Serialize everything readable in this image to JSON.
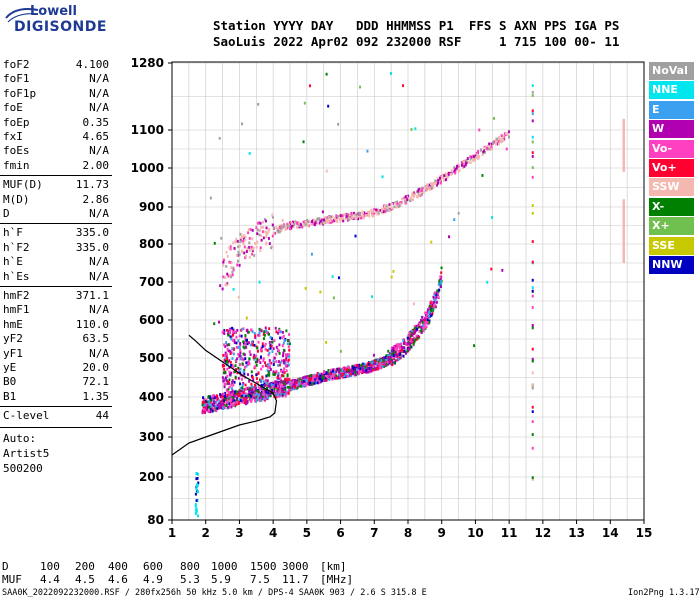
{
  "logo": {
    "top": "Lowell",
    "bottom": "DIGISONDE"
  },
  "header": {
    "row1": "Station YYYY DAY   DDD HHMMSS P1  FFS S AXN PPS IGA PS",
    "row2": "SaoLuis 2022 Apr02 092 232000 RSF     1 715 100 00- 11"
  },
  "params": [
    {
      "name": "foF2",
      "value": "4.100"
    },
    {
      "name": "foF1",
      "value": "N/A"
    },
    {
      "name": "foF1p",
      "value": "N/A"
    },
    {
      "name": "foE",
      "value": "N/A"
    },
    {
      "name": "foEp",
      "value": "0.35"
    },
    {
      "name": "fxI",
      "value": "4.65"
    },
    {
      "name": "foEs",
      "value": "N/A"
    },
    {
      "name": "fmin",
      "value": "2.00"
    },
    {
      "name": "MUF(D)",
      "value": "11.73"
    },
    {
      "name": "M(D)",
      "value": "2.86"
    },
    {
      "name": "D",
      "value": "N/A"
    },
    {
      "name": "h`F",
      "value": "335.0"
    },
    {
      "name": "h`F2",
      "value": "335.0"
    },
    {
      "name": "h`E",
      "value": "N/A"
    },
    {
      "name": "h`Es",
      "value": "N/A"
    },
    {
      "name": "hmF2",
      "value": "371.1"
    },
    {
      "name": "hmF1",
      "value": "N/A"
    },
    {
      "name": "hmE",
      "value": "110.0"
    },
    {
      "name": "yF2",
      "value": "63.5"
    },
    {
      "name": "yF1",
      "value": "N/A"
    },
    {
      "name": "yE",
      "value": "20.0"
    },
    {
      "name": "B0",
      "value": "72.1"
    },
    {
      "name": "B1",
      "value": "1.35"
    },
    {
      "name": "C-level",
      "value": "44"
    }
  ],
  "auto": {
    "line1": "Auto:",
    "line2": "Artist5",
    "line3": "500200"
  },
  "legend": [
    {
      "label": "NoVal",
      "color": "#a0a0a0"
    },
    {
      "label": "NNE",
      "color": "#00e5ee"
    },
    {
      "label": "E",
      "color": "#3ca0f0"
    },
    {
      "label": "W",
      "color": "#b000b0"
    },
    {
      "label": "Vo-",
      "color": "#ff40c0"
    },
    {
      "label": "Vo+",
      "color": "#ff0030"
    },
    {
      "label": "SSW",
      "color": "#f4b8b0"
    },
    {
      "label": "X-",
      "color": "#008000"
    },
    {
      "label": "X+",
      "color": "#70c050"
    },
    {
      "label": "SSE",
      "color": "#c8c800"
    },
    {
      "label": "NNW",
      "color": "#0000c0"
    }
  ],
  "footer": {
    "d_label": "D",
    "d_values": [
      "100",
      "200",
      "400",
      "600",
      "800",
      "1000",
      "1500",
      "3000"
    ],
    "d_unit": "[km]",
    "muf_label": "MUF",
    "muf_values": [
      "4.4",
      "4.5",
      "4.6",
      "4.9",
      "5.3",
      "5.9",
      "7.5",
      "11.7"
    ],
    "muf_unit": "[MHz]",
    "file_info": "SAA0K_2022092232000.RSF / 280fx256h 50 kHz 5.0 km / DPS-4 SAA0K 903 / 2.6 S 315.8 E",
    "version": "Ion2Png 1.3.17"
  },
  "chart_data": {
    "type": "scatter",
    "x_ticks": [
      1,
      2,
      3,
      4,
      5,
      6,
      7,
      8,
      9,
      10,
      11,
      12,
      13,
      14,
      15
    ],
    "y_ticks": [
      80,
      200,
      300,
      400,
      500,
      600,
      700,
      800,
      900,
      1000,
      1100,
      1280
    ],
    "xlim": [
      1,
      15
    ],
    "ylim": [
      80,
      1280
    ],
    "grid": true,
    "legend_position": "right",
    "o_trace": [
      [
        1.9,
        380
      ],
      [
        2.3,
        385
      ],
      [
        2.8,
        395
      ],
      [
        3.3,
        405
      ],
      [
        3.8,
        412
      ],
      [
        4.3,
        425
      ],
      [
        5.0,
        440
      ],
      [
        5.6,
        455
      ],
      [
        6.2,
        465
      ],
      [
        6.8,
        475
      ],
      [
        7.3,
        490
      ],
      [
        7.8,
        520
      ],
      [
        8.2,
        560
      ],
      [
        8.6,
        610
      ],
      [
        8.9,
        670
      ],
      [
        9.0,
        720
      ]
    ],
    "x_trace": [
      [
        2.5,
        720
      ],
      [
        2.8,
        760
      ],
      [
        3.2,
        800
      ],
      [
        3.8,
        830
      ],
      [
        4.5,
        850
      ],
      [
        5.3,
        860
      ],
      [
        6.0,
        870
      ],
      [
        6.8,
        880
      ],
      [
        7.5,
        900
      ],
      [
        8.2,
        930
      ],
      [
        8.8,
        960
      ],
      [
        9.5,
        1000
      ],
      [
        10.0,
        1030
      ],
      [
        10.5,
        1060
      ],
      [
        11.0,
        1090
      ]
    ],
    "profile": [
      [
        1.0,
        255
      ],
      [
        1.5,
        285
      ],
      [
        2.0,
        300
      ],
      [
        2.5,
        315
      ],
      [
        3.0,
        330
      ],
      [
        3.5,
        340
      ],
      [
        3.9,
        350
      ],
      [
        4.05,
        360
      ],
      [
        4.1,
        390
      ],
      [
        4.0,
        410
      ],
      [
        3.6,
        430
      ],
      [
        3.1,
        455
      ],
      [
        2.5,
        490
      ],
      [
        2.0,
        520
      ],
      [
        1.7,
        545
      ],
      [
        1.5,
        560
      ]
    ]
  }
}
